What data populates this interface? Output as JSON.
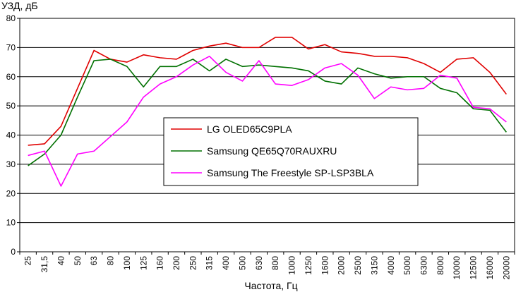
{
  "chart_data": {
    "type": "line",
    "ylabel": "УЗД, дБ",
    "xlabel": "Частота, Гц",
    "ylim": [
      0,
      80
    ],
    "y_ticks": [
      0,
      10,
      20,
      30,
      40,
      50,
      60,
      70,
      80
    ],
    "grid": "horizontal",
    "legend_position": "center",
    "categories": [
      "25",
      "31,5",
      "40",
      "50",
      "63",
      "80",
      "100",
      "125",
      "160",
      "200",
      "250",
      "315",
      "400",
      "500",
      "630",
      "800",
      "1000",
      "1250",
      "1600",
      "2000",
      "2500",
      "3150",
      "4000",
      "5000",
      "6300",
      "8000",
      "10000",
      "12500",
      "16000",
      "20000"
    ],
    "series": [
      {
        "name": "LG OLED65C9PLA",
        "color": "#e00000",
        "values": [
          36.5,
          37.0,
          43.0,
          56.0,
          69.0,
          66.0,
          65.0,
          67.5,
          66.5,
          66.0,
          69.0,
          70.5,
          71.5,
          70.0,
          70.0,
          73.5,
          73.5,
          69.5,
          71.0,
          68.5,
          68.0,
          67.0,
          67.0,
          66.5,
          64.5,
          61.5,
          66.0,
          66.5,
          61.5,
          54.0
        ]
      },
      {
        "name": "Samsung QE65Q70RAUXRU",
        "color": "#007000",
        "values": [
          29.5,
          33.5,
          40.0,
          53.0,
          65.5,
          66.0,
          63.5,
          56.5,
          63.5,
          63.5,
          66.0,
          62.0,
          66.0,
          63.5,
          64.0,
          63.5,
          63.0,
          62.0,
          58.5,
          57.5,
          63.0,
          61.0,
          59.5,
          60.0,
          60.0,
          56.0,
          54.5,
          49.0,
          48.5,
          41.0
        ]
      },
      {
        "name": "Samsung The Freestyle SP-LSP3BLA",
        "color": "#ff00ff",
        "values": [
          33.0,
          34.5,
          22.5,
          33.5,
          34.5,
          39.5,
          44.5,
          53.0,
          57.5,
          60.0,
          64.0,
          67.0,
          61.5,
          58.5,
          65.5,
          57.5,
          57.0,
          59.0,
          63.0,
          64.5,
          60.5,
          52.5,
          56.5,
          55.5,
          56.0,
          60.5,
          59.5,
          49.5,
          49.0,
          44.5
        ]
      }
    ]
  }
}
